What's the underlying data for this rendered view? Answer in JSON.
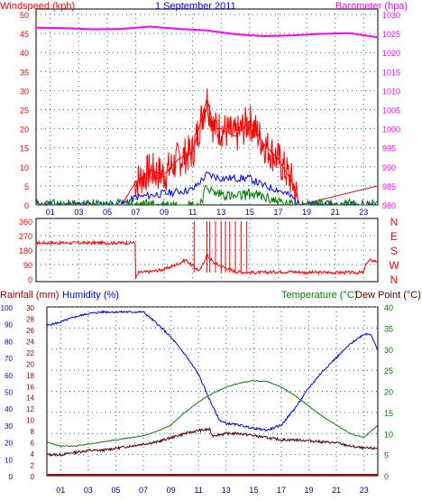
{
  "colors": {
    "wind": "#ff0000",
    "gust_band": "#ff0000",
    "wind_avg": "#0000ff",
    "wind_low": "#008000",
    "barometer": "#ff00ff",
    "direction": "#ff0000",
    "humidity": "#0000ff",
    "temperature": "#008000",
    "dewpoint": "#550000",
    "rainfall": "#aa0000",
    "grid": "#008080"
  },
  "chart_data": [
    {
      "type": "line",
      "title": "1 September 2011",
      "ylabel_left": "Windspeed (kph)",
      "ylabel_right": "Barometer (hpa)",
      "ylim_left": [
        0,
        50
      ],
      "ylim_right": [
        980,
        1030
      ],
      "yticks_left": [
        "0",
        "5",
        "10",
        "15",
        "20",
        "25",
        "30",
        "35",
        "40",
        "45",
        "50"
      ],
      "yticks_right": [
        "980",
        "985",
        "990",
        "995",
        "1000",
        "1005",
        "1010",
        "1015",
        "1020",
        "1025",
        "1030"
      ],
      "xticks": [
        "01",
        "03",
        "05",
        "07",
        "09",
        "11",
        "13",
        "15",
        "17",
        "19",
        "21",
        "23"
      ],
      "series": [
        {
          "key": "barometer",
          "axis": "right",
          "x": [
            0,
            2,
            4,
            6,
            8,
            10,
            12,
            14,
            16,
            18,
            20,
            22,
            24
          ],
          "values": [
            1026.5,
            1026.4,
            1026.1,
            1026.2,
            1026.8,
            1026.2,
            1025.8,
            1024.8,
            1024.3,
            1024.5,
            1024.9,
            1025.1,
            1024.0
          ]
        },
        {
          "key": "wind",
          "axis": "left",
          "x": [
            0,
            6,
            7,
            8,
            9,
            10,
            11,
            12,
            12.5,
            13,
            14,
            15,
            16,
            17,
            18,
            18.5,
            24
          ],
          "values": [
            0,
            0,
            6,
            9,
            8,
            12,
            14,
            28,
            20,
            20,
            18,
            22,
            16,
            12,
            6,
            0,
            5
          ]
        },
        {
          "key": "wind_avg",
          "axis": "left",
          "x": [
            0,
            6,
            7,
            9,
            11,
            12,
            13,
            14,
            15,
            16,
            17,
            18,
            18.5,
            24
          ],
          "values": [
            0,
            0,
            2,
            3,
            4,
            8,
            7,
            7,
            7,
            5,
            4,
            2,
            0,
            0
          ]
        },
        {
          "key": "wind_low",
          "axis": "left",
          "x": [
            0,
            11.5,
            12,
            12.5,
            13,
            14,
            15,
            16,
            17,
            17.5,
            24
          ],
          "values": [
            0,
            0,
            5,
            3,
            3,
            2,
            3,
            2,
            1,
            0,
            0
          ]
        }
      ]
    },
    {
      "type": "line",
      "ylabel_right": [
        "N",
        "W",
        "S",
        "E",
        "N"
      ],
      "ylim": [
        0,
        360
      ],
      "yticks_left": [
        "0",
        "90",
        "180",
        "270",
        "360"
      ],
      "series": [
        {
          "key": "direction",
          "x": [
            0,
            6.95,
            7,
            7.2,
            8,
            9,
            10,
            10.5,
            11,
            11.5,
            12,
            12.5,
            13,
            14,
            15,
            16,
            17,
            18,
            19,
            20,
            21,
            22,
            23,
            23.2,
            23.5,
            24
          ],
          "values": [
            225,
            225,
            5,
            40,
            45,
            60,
            95,
            120,
            80,
            50,
            150,
            100,
            80,
            45,
            40,
            40,
            45,
            45,
            40,
            40,
            40,
            40,
            40,
            100,
            115,
            110
          ]
        }
      ]
    },
    {
      "type": "line",
      "ylabel_left_outer": "Rainfall (mm)",
      "ylabel_left_inner": "Humidity (%)",
      "ylabel_right_inner": "Temperature (°C)",
      "ylabel_right_outer": "Dew Point (°C)",
      "ylim_humidity": [
        0,
        100
      ],
      "ylim_rainfall": [
        0,
        30
      ],
      "ylim_temperature": [
        0,
        40
      ],
      "yticks_humidity": [
        "0",
        "10",
        "20",
        "30",
        "40",
        "50",
        "60",
        "70",
        "80",
        "90",
        "100"
      ],
      "yticks_rainfall": [
        "0",
        "2",
        "4",
        "6",
        "8",
        "10",
        "12",
        "14",
        "16",
        "18",
        "20",
        "22",
        "24",
        "26",
        "28",
        "30"
      ],
      "yticks_temperature": [
        "0",
        "5",
        "10",
        "15",
        "20",
        "25",
        "30",
        "35",
        "40"
      ],
      "series": [
        {
          "key": "humidity",
          "axis": "humidity",
          "x": [
            0,
            1,
            2,
            3,
            4,
            5,
            6,
            7,
            8,
            9,
            10,
            11,
            11.8,
            12.5,
            13,
            14,
            15,
            16,
            17,
            18,
            19,
            20,
            21,
            22,
            23,
            23.5,
            24
          ],
          "values": [
            89,
            91,
            94,
            96,
            97,
            97,
            97,
            97,
            90,
            82,
            72,
            60,
            45,
            33,
            31,
            30,
            28,
            27,
            30,
            40,
            52,
            62,
            70,
            78,
            84,
            84,
            74
          ]
        },
        {
          "key": "temperature",
          "axis": "temperature",
          "x": [
            0,
            1,
            2,
            3,
            4,
            5,
            6,
            7,
            8,
            9,
            10,
            11,
            12,
            13,
            14,
            15,
            16,
            17,
            18,
            19,
            20,
            21,
            22,
            23,
            23.5,
            24
          ],
          "values": [
            8,
            7,
            7,
            7.5,
            8,
            8.5,
            9,
            9.5,
            10.5,
            12,
            15,
            17.5,
            19.5,
            21,
            22,
            22.5,
            22.3,
            21,
            19,
            16.5,
            14,
            12,
            10,
            9,
            10.5,
            12
          ]
        },
        {
          "key": "dewpoint",
          "axis": "temperature",
          "x": [
            0,
            1,
            2,
            3,
            4,
            5,
            6,
            7,
            8,
            9,
            10,
            11,
            11.8,
            12,
            13,
            14,
            15,
            16,
            17,
            18,
            19,
            20,
            21,
            22,
            23,
            24
          ],
          "values": [
            5,
            5,
            5.5,
            6,
            6,
            6.5,
            7,
            7.5,
            8,
            9,
            10,
            10.7,
            11,
            9.5,
            10,
            10,
            9.5,
            9,
            8.5,
            8.5,
            8.3,
            8,
            7.8,
            7,
            6.5,
            6.5
          ]
        },
        {
          "key": "rainfall",
          "axis": "rainfall",
          "x": [
            0,
            24
          ],
          "values": [
            0,
            0
          ]
        }
      ]
    }
  ]
}
